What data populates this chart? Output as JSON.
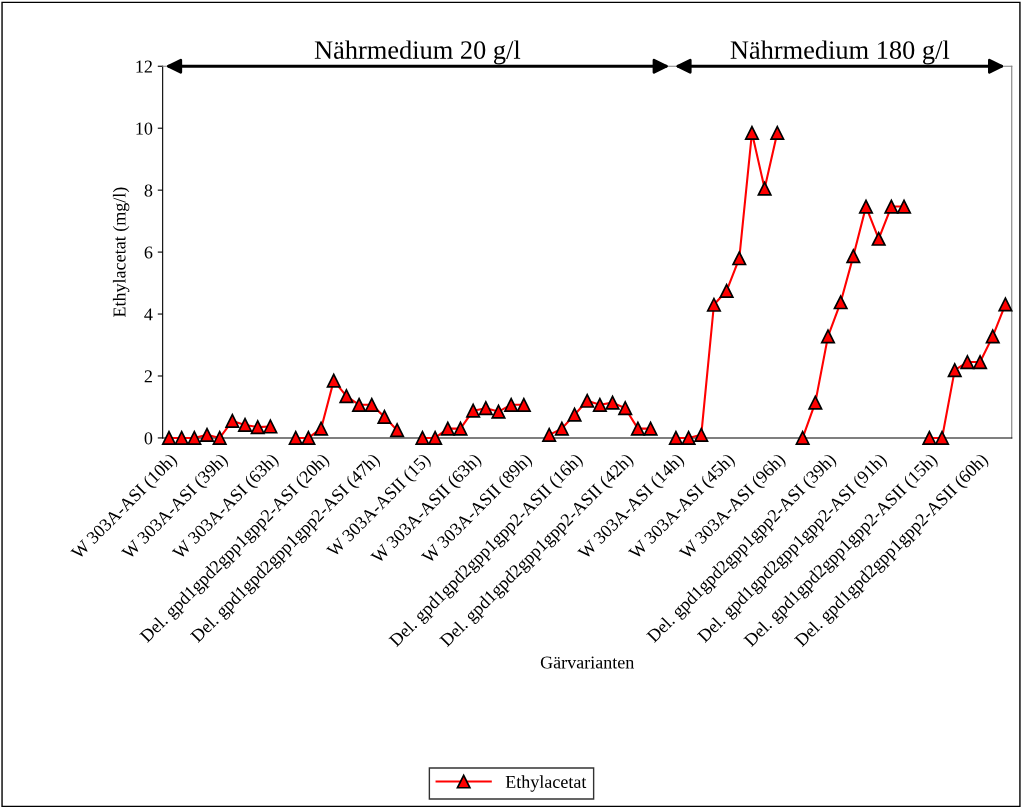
{
  "chart_data": {
    "type": "line",
    "ylabel": "Ethylacetat (mg/l)",
    "xlabel": "Gärvarianten",
    "annotations": [
      "Nährmedium 20 g/l",
      "Nährmedium 180 g/l"
    ],
    "categories": [
      "W 303A-ASI (10h)",
      null,
      null,
      null,
      "W 303A-ASI (39h)",
      null,
      null,
      null,
      "W 303A-ASI (63h)",
      null,
      null,
      null,
      "Del. gpd1gpd2gpp1gpp2-ASI (20h)",
      null,
      null,
      null,
      "Del. gpd1gpd2gpp1gpp2-ASI (47h)",
      null,
      null,
      null,
      "W 303A-ASII (15)",
      null,
      null,
      null,
      "W 303A-ASII (63h)",
      null,
      null,
      null,
      "W 303A-ASII (89h)",
      null,
      null,
      null,
      "Del. gpd1gpd2gpp1gpp2-ASII (16h)",
      null,
      null,
      null,
      "Del. gpd1gpd2gpp1gpp2-ASII (42h)",
      null,
      null,
      null,
      "W 303A-ASI (14h)",
      null,
      null,
      null,
      "W 303A-ASI (45h)",
      null,
      null,
      null,
      "W 303A-ASI (96h)",
      null,
      null,
      null,
      "Del. gpd1gpd2gpp1gpp2-ASI (39h)",
      null,
      null,
      null,
      "Del. gpd1gpd2gpp1gpp2-ASI (91h)",
      null,
      null,
      null,
      "Del. gpd1gpd2gpp1gpp2-ASII (15h)",
      null,
      null,
      null,
      "Del. gpd1gpd2gpp1gpp2-ASII (60h)",
      null,
      null
    ],
    "series": [
      {
        "name": "Ethylacetat",
        "color": "#ff0000",
        "values": [
          0,
          0,
          0,
          0.1,
          0,
          0.55,
          0.42,
          0.35,
          0.37,
          null,
          0,
          0,
          0.3,
          1.85,
          1.35,
          1.07,
          1.07,
          0.68,
          0.25,
          null,
          0,
          0,
          0.3,
          0.3,
          0.88,
          0.96,
          0.85,
          1.07,
          1.07,
          null,
          0.1,
          0.3,
          0.75,
          1.2,
          1.07,
          1.14,
          0.96,
          0.3,
          0.3,
          null,
          0,
          0,
          0.1,
          4.3,
          4.75,
          5.8,
          9.85,
          8.05,
          9.85,
          null,
          0,
          1.14,
          3.28,
          4.38,
          5.87,
          7.47,
          6.43,
          7.47,
          7.47,
          null,
          0,
          0,
          2.19,
          2.45,
          2.45,
          3.28,
          4.31
        ]
      }
    ],
    "ylim": [
      0,
      12
    ],
    "yticks": [
      0,
      2,
      4,
      6,
      8,
      10,
      12
    ],
    "marker": "triangle",
    "line_style": "solid",
    "grid": false,
    "legend": "bottom"
  }
}
